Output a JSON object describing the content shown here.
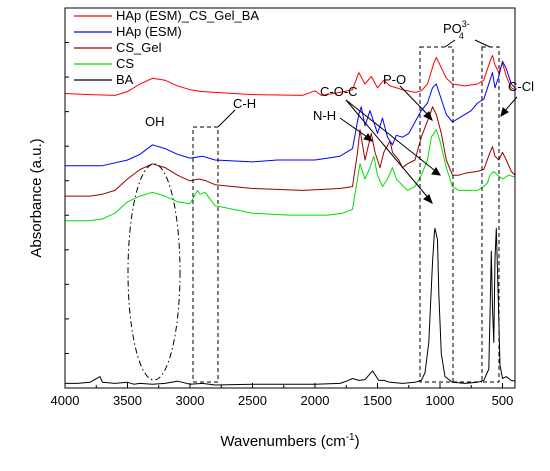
{
  "chart_data": {
    "type": "line",
    "title": "",
    "xlabel": "Wavenumbers (cm",
    "xlabel_sup": "-1",
    "xlabel_close": ")",
    "ylabel": "Absorbance (a.u.)",
    "xlim": [
      4000,
      400
    ],
    "x_reversed": true,
    "y_ticks_labeled": false,
    "x_ticks": [
      "4000",
      "3500",
      "3000",
      "2500",
      "2000",
      "1500",
      "1000",
      "500"
    ],
    "x_tick_values": [
      4000,
      3500,
      3000,
      2500,
      2000,
      1500,
      1000,
      500
    ],
    "legend_position": "top-left",
    "series": [
      {
        "name": "HAp (ESM)_CS_Gel_BA",
        "color": "#ff0000",
        "points": [
          [
            4000,
            0.775
          ],
          [
            3800,
            0.772
          ],
          [
            3600,
            0.77
          ],
          [
            3500,
            0.78
          ],
          [
            3400,
            0.8
          ],
          [
            3300,
            0.815
          ],
          [
            3200,
            0.81
          ],
          [
            3100,
            0.795
          ],
          [
            3000,
            0.785
          ],
          [
            2900,
            0.78
          ],
          [
            2500,
            0.772
          ],
          [
            2100,
            0.77
          ],
          [
            2000,
            0.782
          ],
          [
            1950,
            0.77
          ],
          [
            1800,
            0.778
          ],
          [
            1700,
            0.785
          ],
          [
            1650,
            0.83
          ],
          [
            1600,
            0.8
          ],
          [
            1550,
            0.82
          ],
          [
            1500,
            0.79
          ],
          [
            1450,
            0.81
          ],
          [
            1400,
            0.795
          ],
          [
            1300,
            0.785
          ],
          [
            1200,
            0.778
          ],
          [
            1150,
            0.782
          ],
          [
            1100,
            0.8
          ],
          [
            1050,
            0.855
          ],
          [
            1030,
            0.87
          ],
          [
            1000,
            0.85
          ],
          [
            950,
            0.815
          ],
          [
            900,
            0.8
          ],
          [
            800,
            0.795
          ],
          [
            700,
            0.8
          ],
          [
            650,
            0.81
          ],
          [
            600,
            0.86
          ],
          [
            580,
            0.875
          ],
          [
            560,
            0.85
          ],
          [
            530,
            0.83
          ],
          [
            500,
            0.855
          ],
          [
            470,
            0.82
          ],
          [
            430,
            0.79
          ],
          [
            400,
            0.785
          ]
        ]
      },
      {
        "name": "HAp (ESM)",
        "color": "#0000ff",
        "points": [
          [
            4000,
            0.585
          ],
          [
            3700,
            0.585
          ],
          [
            3500,
            0.6
          ],
          [
            3400,
            0.615
          ],
          [
            3300,
            0.64
          ],
          [
            3200,
            0.63
          ],
          [
            3100,
            0.615
          ],
          [
            3000,
            0.605
          ],
          [
            2900,
            0.61
          ],
          [
            2800,
            0.6
          ],
          [
            2500,
            0.595
          ],
          [
            2300,
            0.6
          ],
          [
            2000,
            0.6
          ],
          [
            1900,
            0.605
          ],
          [
            1800,
            0.61
          ],
          [
            1700,
            0.63
          ],
          [
            1650,
            0.72
          ],
          [
            1630,
            0.74
          ],
          [
            1600,
            0.69
          ],
          [
            1560,
            0.73
          ],
          [
            1530,
            0.7
          ],
          [
            1500,
            0.67
          ],
          [
            1460,
            0.71
          ],
          [
            1420,
            0.66
          ],
          [
            1380,
            0.64
          ],
          [
            1350,
            0.665
          ],
          [
            1300,
            0.66
          ],
          [
            1250,
            0.67
          ],
          [
            1200,
            0.7
          ],
          [
            1150,
            0.73
          ],
          [
            1100,
            0.75
          ],
          [
            1060,
            0.79
          ],
          [
            1030,
            0.8
          ],
          [
            1000,
            0.77
          ],
          [
            950,
            0.72
          ],
          [
            900,
            0.7
          ],
          [
            850,
            0.71
          ],
          [
            800,
            0.72
          ],
          [
            750,
            0.73
          ],
          [
            700,
            0.75
          ],
          [
            650,
            0.76
          ],
          [
            600,
            0.81
          ],
          [
            580,
            0.83
          ],
          [
            560,
            0.79
          ],
          [
            530,
            0.82
          ],
          [
            500,
            0.86
          ],
          [
            470,
            0.84
          ],
          [
            430,
            0.8
          ],
          [
            400,
            0.79
          ]
        ]
      },
      {
        "name": "CS_Gel",
        "color": "#990000",
        "points": [
          [
            4000,
            0.505
          ],
          [
            3800,
            0.505
          ],
          [
            3700,
            0.51
          ],
          [
            3600,
            0.52
          ],
          [
            3500,
            0.55
          ],
          [
            3400,
            0.575
          ],
          [
            3300,
            0.59
          ],
          [
            3200,
            0.58
          ],
          [
            3100,
            0.56
          ],
          [
            3000,
            0.545
          ],
          [
            2930,
            0.55
          ],
          [
            2870,
            0.545
          ],
          [
            2800,
            0.535
          ],
          [
            2500,
            0.525
          ],
          [
            2100,
            0.52
          ],
          [
            1800,
            0.525
          ],
          [
            1700,
            0.53
          ],
          [
            1660,
            0.62
          ],
          [
            1640,
            0.68
          ],
          [
            1600,
            0.6
          ],
          [
            1550,
            0.67
          ],
          [
            1520,
            0.62
          ],
          [
            1480,
            0.58
          ],
          [
            1450,
            0.62
          ],
          [
            1400,
            0.65
          ],
          [
            1380,
            0.62
          ],
          [
            1330,
            0.6
          ],
          [
            1300,
            0.58
          ],
          [
            1260,
            0.59
          ],
          [
            1200,
            0.6
          ],
          [
            1150,
            0.66
          ],
          [
            1080,
            0.72
          ],
          [
            1060,
            0.74
          ],
          [
            1030,
            0.72
          ],
          [
            990,
            0.67
          ],
          [
            950,
            0.6
          ],
          [
            900,
            0.56
          ],
          [
            850,
            0.56
          ],
          [
            800,
            0.565
          ],
          [
            700,
            0.57
          ],
          [
            650,
            0.575
          ],
          [
            600,
            0.62
          ],
          [
            580,
            0.635
          ],
          [
            560,
            0.61
          ],
          [
            530,
            0.6
          ],
          [
            500,
            0.62
          ],
          [
            470,
            0.6
          ],
          [
            430,
            0.57
          ],
          [
            400,
            0.56
          ]
        ]
      },
      {
        "name": "CS",
        "color": "#00dd00",
        "points": [
          [
            4000,
            0.44
          ],
          [
            3800,
            0.44
          ],
          [
            3700,
            0.445
          ],
          [
            3600,
            0.46
          ],
          [
            3500,
            0.49
          ],
          [
            3400,
            0.505
          ],
          [
            3300,
            0.515
          ],
          [
            3200,
            0.505
          ],
          [
            3100,
            0.49
          ],
          [
            3000,
            0.485
          ],
          [
            2940,
            0.52
          ],
          [
            2920,
            0.51
          ],
          [
            2880,
            0.515
          ],
          [
            2800,
            0.48
          ],
          [
            2500,
            0.46
          ],
          [
            2200,
            0.455
          ],
          [
            1900,
            0.455
          ],
          [
            1780,
            0.46
          ],
          [
            1700,
            0.47
          ],
          [
            1660,
            0.55
          ],
          [
            1640,
            0.59
          ],
          [
            1600,
            0.55
          ],
          [
            1560,
            0.58
          ],
          [
            1530,
            0.61
          ],
          [
            1500,
            0.56
          ],
          [
            1460,
            0.53
          ],
          [
            1420,
            0.55
          ],
          [
            1380,
            0.58
          ],
          [
            1350,
            0.55
          ],
          [
            1320,
            0.54
          ],
          [
            1260,
            0.52
          ],
          [
            1200,
            0.53
          ],
          [
            1150,
            0.56
          ],
          [
            1100,
            0.6
          ],
          [
            1070,
            0.66
          ],
          [
            1030,
            0.68
          ],
          [
            1000,
            0.65
          ],
          [
            950,
            0.58
          ],
          [
            900,
            0.53
          ],
          [
            850,
            0.52
          ],
          [
            800,
            0.52
          ],
          [
            700,
            0.52
          ],
          [
            650,
            0.53
          ],
          [
            620,
            0.54
          ],
          [
            600,
            0.56
          ],
          [
            570,
            0.57
          ],
          [
            540,
            0.56
          ],
          [
            500,
            0.55
          ],
          [
            450,
            0.56
          ],
          [
            400,
            0.555
          ]
        ]
      },
      {
        "name": "BA",
        "color": "#000000",
        "points": [
          [
            4000,
            0.012
          ],
          [
            3900,
            0.012
          ],
          [
            3800,
            0.015
          ],
          [
            3720,
            0.03
          ],
          [
            3700,
            0.015
          ],
          [
            3600,
            0.012
          ],
          [
            3500,
            0.015
          ],
          [
            3450,
            0.01
          ],
          [
            3400,
            0.012
          ],
          [
            3300,
            0.01
          ],
          [
            3200,
            0.012
          ],
          [
            3100,
            0.018
          ],
          [
            3050,
            0.014
          ],
          [
            3000,
            0.01
          ],
          [
            2900,
            0.012
          ],
          [
            2800,
            0.008
          ],
          [
            2500,
            0.01
          ],
          [
            2000,
            0.01
          ],
          [
            1800,
            0.012
          ],
          [
            1750,
            0.018
          ],
          [
            1700,
            0.025
          ],
          [
            1650,
            0.02
          ],
          [
            1600,
            0.022
          ],
          [
            1540,
            0.045
          ],
          [
            1520,
            0.035
          ],
          [
            1490,
            0.02
          ],
          [
            1450,
            0.02
          ],
          [
            1400,
            0.015
          ],
          [
            1300,
            0.012
          ],
          [
            1200,
            0.015
          ],
          [
            1150,
            0.02
          ],
          [
            1120,
            0.04
          ],
          [
            1090,
            0.12
          ],
          [
            1060,
            0.33
          ],
          [
            1045,
            0.41
          ],
          [
            1040,
            0.42
          ],
          [
            1020,
            0.39
          ],
          [
            1010,
            0.25
          ],
          [
            990,
            0.09
          ],
          [
            960,
            0.03
          ],
          [
            900,
            0.015
          ],
          [
            800,
            0.012
          ],
          [
            700,
            0.015
          ],
          [
            650,
            0.02
          ],
          [
            610,
            0.05
          ],
          [
            600,
            0.19
          ],
          [
            590,
            0.36
          ],
          [
            580,
            0.21
          ],
          [
            570,
            0.12
          ],
          [
            560,
            0.34
          ],
          [
            550,
            0.42
          ],
          [
            540,
            0.31
          ],
          [
            520,
            0.06
          ],
          [
            500,
            0.025
          ],
          [
            470,
            0.03
          ],
          [
            430,
            0.02
          ],
          [
            400,
            0.018
          ]
        ]
      }
    ],
    "annotations": {
      "oh": "OH",
      "ch": "C-H",
      "nh": "N-H",
      "coc": "C-O-C",
      "po": "P-O",
      "po4": "PO",
      "po4_sup": "3-",
      "po4_sub": "4",
      "ccl": "C-Cl"
    }
  }
}
